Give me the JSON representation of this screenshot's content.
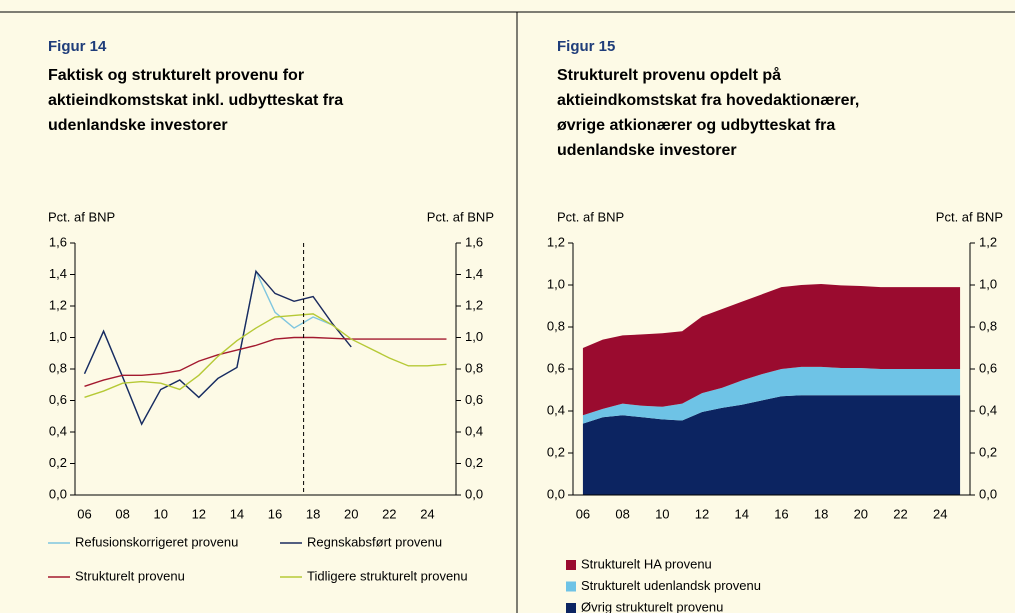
{
  "chart_data": [
    {
      "type": "line",
      "label": "Figur 14",
      "title": [
        "Faktisk og strukturelt provenu for",
        "aktieindkomstskat inkl. udbytteskat fra",
        "udenlandske investorer"
      ],
      "ylabel": "Pct. af BNP",
      "y2label": "Pct. af BNP",
      "categories": [
        "06",
        null,
        "08",
        null,
        "10",
        null,
        "12",
        null,
        "14",
        null,
        "16",
        null,
        "18",
        null,
        "20",
        null,
        "22",
        null,
        "24",
        null
      ],
      "ylim": [
        0,
        1.6
      ],
      "yticks": [
        {
          "value": 0,
          "label": "0,0"
        },
        {
          "value": 0.2,
          "label": "0,2"
        },
        {
          "value": 0.4,
          "label": "0,4"
        },
        {
          "value": 0.6,
          "label": "0,6"
        },
        {
          "value": 0.8,
          "label": "0,8"
        },
        {
          "value": 1.0,
          "label": "1,0"
        },
        {
          "value": 1.2,
          "label": "1,2"
        },
        {
          "value": 1.4,
          "label": "1,4"
        },
        {
          "value": 1.6,
          "label": "1,6"
        }
      ],
      "y2lim": [
        0,
        1.6
      ],
      "y2ticks": [
        {
          "value": 0,
          "label": "0,0"
        },
        {
          "value": 0.2,
          "label": "0,2"
        },
        {
          "value": 0.4,
          "label": "0,4"
        },
        {
          "value": 0.6,
          "label": "0,6"
        },
        {
          "value": 0.8,
          "label": "0,8"
        },
        {
          "value": 1.0,
          "label": "1,0"
        },
        {
          "value": 1.2,
          "label": "1,2"
        },
        {
          "value": 1.4,
          "label": "1,4"
        },
        {
          "value": 1.6,
          "label": "1,6"
        }
      ],
      "vline": 11.5,
      "series": [
        {
          "name": "Refusionskorrigeret provenu",
          "color": "#7fc6df",
          "values": [
            0.77,
            1.04,
            0.75,
            0.45,
            0.67,
            0.73,
            0.62,
            0.74,
            0.81,
            1.42,
            1.16,
            1.06,
            1.13,
            1.08,
            null,
            null,
            null,
            null,
            null,
            null
          ]
        },
        {
          "name": "Regnskabsført provenu",
          "color": "#1b2a5e",
          "values": [
            0.77,
            1.04,
            0.75,
            0.45,
            0.67,
            0.73,
            0.62,
            0.74,
            0.81,
            1.42,
            1.28,
            1.23,
            1.26,
            1.09,
            0.94,
            null,
            null,
            null,
            null,
            null
          ]
        },
        {
          "name": "Strukturelt provenu",
          "color": "#a3192f",
          "values": [
            0.69,
            0.73,
            0.76,
            0.76,
            0.77,
            0.79,
            0.85,
            0.89,
            0.92,
            0.95,
            0.99,
            1.0,
            1.0,
            0.995,
            0.99,
            0.99,
            0.99,
            0.99,
            0.99,
            0.99
          ]
        },
        {
          "name": "Tidligere strukturelt provenu",
          "color": "#b6c936",
          "values": [
            0.62,
            0.66,
            0.71,
            0.72,
            0.71,
            0.67,
            0.76,
            0.88,
            0.98,
            1.06,
            1.13,
            1.14,
            1.15,
            1.08,
            0.99,
            0.93,
            0.87,
            0.82,
            0.82,
            0.83
          ]
        }
      ]
    },
    {
      "type": "area",
      "stacked": true,
      "label": "Figur 15",
      "title": [
        "Strukturelt provenu opdelt på",
        "aktieindkomstskat fra hovedaktionærer,",
        "øvrige atkionærer og udbytteskat fra",
        "udenlandske investorer"
      ],
      "ylabel": "Pct. af BNP",
      "y2label": "Pct. af BNP",
      "categories": [
        "06",
        null,
        "08",
        null,
        "10",
        null,
        "12",
        null,
        "14",
        null,
        "16",
        null,
        "18",
        null,
        "20",
        null,
        "22",
        null,
        "24",
        null
      ],
      "ylim": [
        0,
        1.2
      ],
      "yticks": [
        {
          "value": 0,
          "label": "0,0"
        },
        {
          "value": 0.2,
          "label": "0,2"
        },
        {
          "value": 0.4,
          "label": "0,4"
        },
        {
          "value": 0.6,
          "label": "0,6"
        },
        {
          "value": 0.8,
          "label": "0,8"
        },
        {
          "value": 1.0,
          "label": "1,0"
        },
        {
          "value": 1.2,
          "label": "1,2"
        }
      ],
      "y2lim": [
        0,
        1.2
      ],
      "y2ticks": [
        {
          "value": 0,
          "label": "0,0"
        },
        {
          "value": 0.2,
          "label": "0,2"
        },
        {
          "value": 0.4,
          "label": "0,4"
        },
        {
          "value": 0.6,
          "label": "0,6"
        },
        {
          "value": 0.8,
          "label": "0,8"
        },
        {
          "value": 1.0,
          "label": "1,0"
        },
        {
          "value": 1.2,
          "label": "1,2"
        }
      ],
      "series": [
        {
          "name": "Strukturelt HA provenu",
          "color": "#9a0b2f",
          "values": [
            0.32,
            0.33,
            0.325,
            0.34,
            0.35,
            0.345,
            0.365,
            0.375,
            0.375,
            0.38,
            0.39,
            0.39,
            0.395,
            0.393,
            0.39,
            0.39,
            0.39,
            0.39,
            0.39,
            0.39
          ]
        },
        {
          "name": "Strukturelt udenlandsk provenu",
          "color": "#6ec3e6",
          "values": [
            0.04,
            0.04,
            0.055,
            0.055,
            0.06,
            0.08,
            0.09,
            0.095,
            0.115,
            0.125,
            0.13,
            0.135,
            0.135,
            0.13,
            0.13,
            0.125,
            0.125,
            0.125,
            0.125,
            0.125
          ]
        },
        {
          "name": "Øvrig strukturelt provenu",
          "color": "#0c2461",
          "values": [
            0.34,
            0.37,
            0.38,
            0.37,
            0.36,
            0.355,
            0.395,
            0.415,
            0.43,
            0.45,
            0.47,
            0.475,
            0.475,
            0.475,
            0.475,
            0.475,
            0.475,
            0.475,
            0.475,
            0.475
          ]
        }
      ]
    }
  ]
}
